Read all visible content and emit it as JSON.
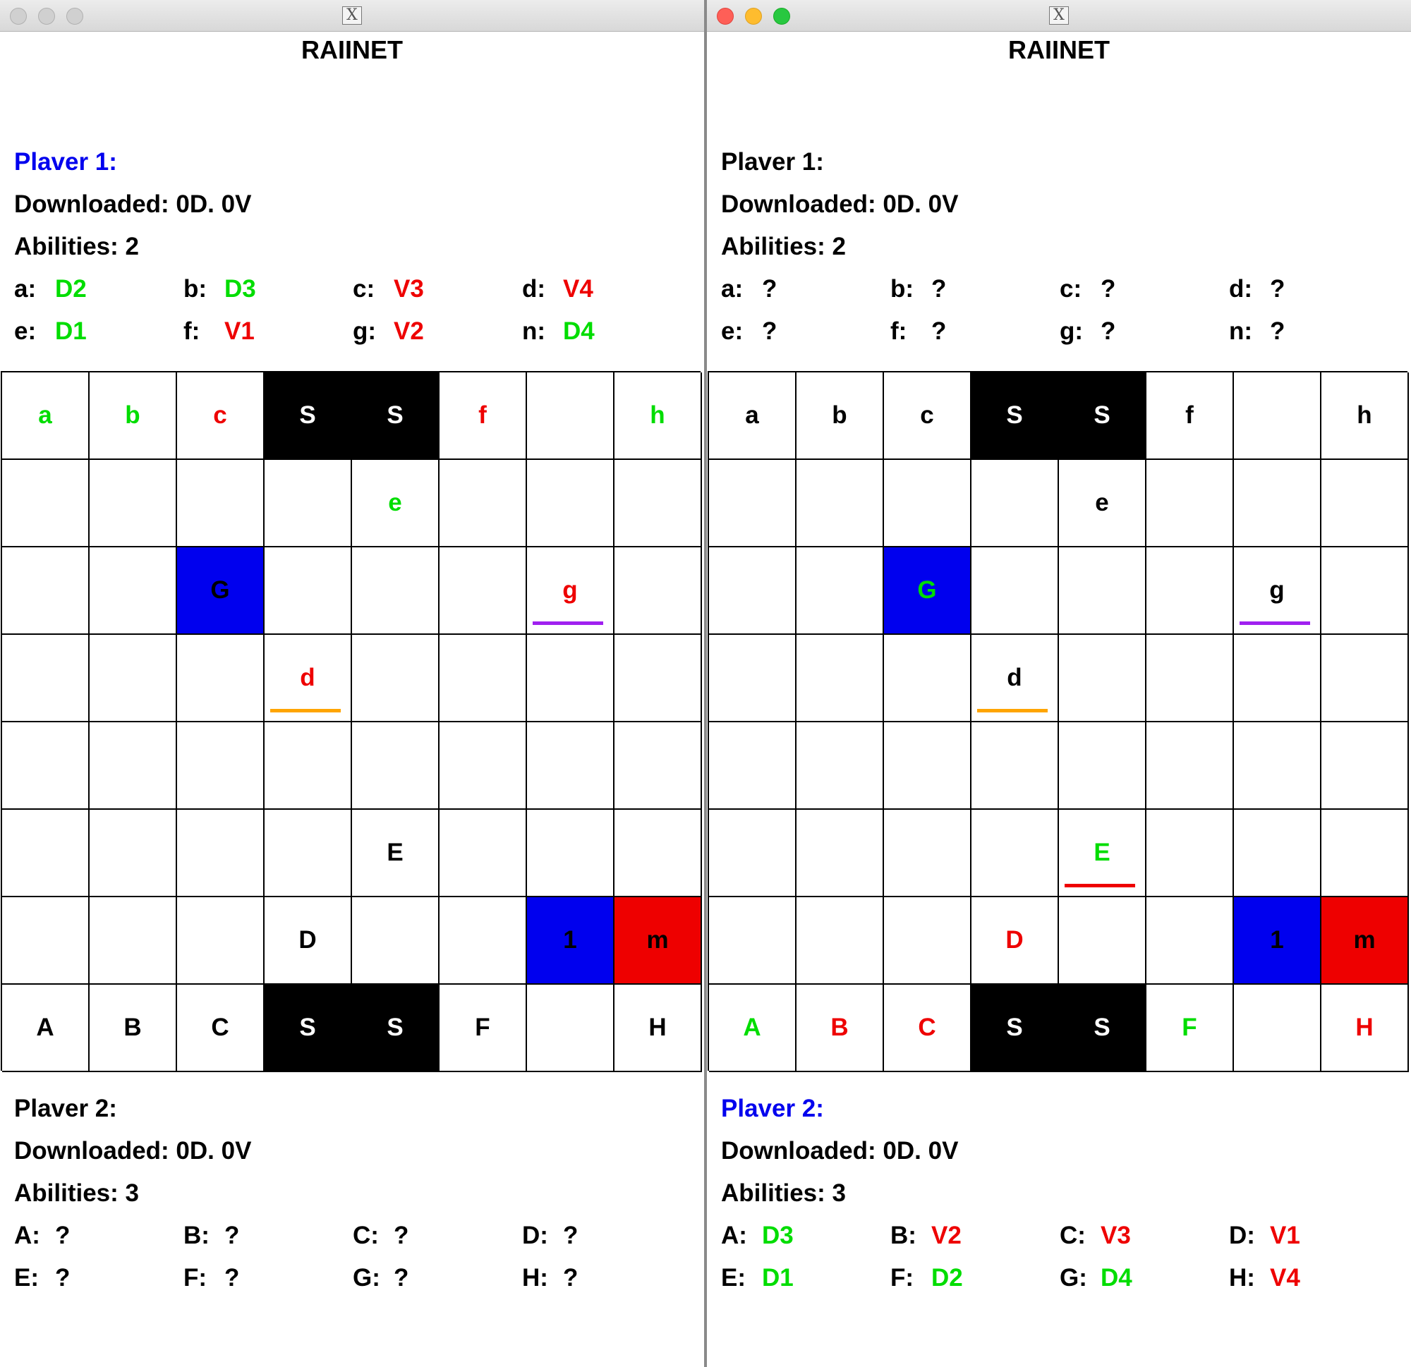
{
  "colors": {
    "green": "#00dd00",
    "red": "#ee0000",
    "blue": "#0000ee",
    "black": "#000000",
    "purple": "#a020f0",
    "orange": "#ffa500"
  },
  "windows": [
    {
      "title": "RAIINET",
      "titlebar_icon": "x11-icon",
      "top_player": {
        "name": "Plaver 1:",
        "downloaded": "Downloaded: 0D. 0V",
        "abilities": "Abilities: 2",
        "links": [
          {
            "key": "a:",
            "value": "D2",
            "color": "green"
          },
          {
            "key": "b:",
            "value": "D3",
            "color": "green"
          },
          {
            "key": "c:",
            "value": "V3",
            "color": "red"
          },
          {
            "key": "d:",
            "value": "V4",
            "color": "red"
          },
          {
            "key": "e:",
            "value": "D1",
            "color": "green"
          },
          {
            "key": "f:",
            "value": "V1",
            "color": "red"
          },
          {
            "key": "g:",
            "value": "V2",
            "color": "red"
          },
          {
            "key": "n:",
            "value": "D4",
            "color": "green"
          }
        ]
      },
      "bottom_player": {
        "name": "Plaver 2:",
        "downloaded": "Downloaded: 0D. 0V",
        "abilities": "Abilities: 3",
        "links": [
          {
            "key": "A:",
            "value": "?",
            "color": "black"
          },
          {
            "key": "B:",
            "value": "?",
            "color": "black"
          },
          {
            "key": "C:",
            "value": "?",
            "color": "black"
          },
          {
            "key": "D:",
            "value": "?",
            "color": "black"
          },
          {
            "key": "E:",
            "value": "?",
            "color": "black"
          },
          {
            "key": "F:",
            "value": "?",
            "color": "black"
          },
          {
            "key": "G:",
            "value": "?",
            "color": "black"
          },
          {
            "key": "H:",
            "value": "?",
            "color": "black"
          }
        ]
      },
      "board": [
        [
          {
            "t": "a",
            "c": "green"
          },
          {
            "t": "b",
            "c": "green"
          },
          {
            "t": "c",
            "c": "red"
          },
          {
            "t": "S",
            "bg": "server"
          },
          {
            "t": "S",
            "bg": "server"
          },
          {
            "t": "f",
            "c": "red"
          },
          {
            "t": ""
          },
          {
            "t": "h",
            "c": "green"
          }
        ],
        [
          {
            "t": ""
          },
          {
            "t": ""
          },
          {
            "t": ""
          },
          {
            "t": ""
          },
          {
            "t": "e",
            "c": "green"
          },
          {
            "t": ""
          },
          {
            "t": ""
          },
          {
            "t": ""
          }
        ],
        [
          {
            "t": ""
          },
          {
            "t": ""
          },
          {
            "t": "G",
            "c": "black",
            "bg": "fw-blue"
          },
          {
            "t": ""
          },
          {
            "t": ""
          },
          {
            "t": ""
          },
          {
            "t": "g",
            "c": "red",
            "u": "purple"
          },
          {
            "t": ""
          }
        ],
        [
          {
            "t": ""
          },
          {
            "t": ""
          },
          {
            "t": ""
          },
          {
            "t": "d",
            "c": "red",
            "u": "orange"
          },
          {
            "t": ""
          },
          {
            "t": ""
          },
          {
            "t": ""
          },
          {
            "t": ""
          }
        ],
        [
          {
            "t": ""
          },
          {
            "t": ""
          },
          {
            "t": ""
          },
          {
            "t": ""
          },
          {
            "t": ""
          },
          {
            "t": ""
          },
          {
            "t": ""
          },
          {
            "t": ""
          }
        ],
        [
          {
            "t": ""
          },
          {
            "t": ""
          },
          {
            "t": ""
          },
          {
            "t": ""
          },
          {
            "t": "E",
            "c": "black"
          },
          {
            "t": ""
          },
          {
            "t": ""
          },
          {
            "t": ""
          }
        ],
        [
          {
            "t": ""
          },
          {
            "t": ""
          },
          {
            "t": ""
          },
          {
            "t": "D",
            "c": "black"
          },
          {
            "t": ""
          },
          {
            "t": ""
          },
          {
            "t": "1",
            "c": "black",
            "bg": "fw-blue"
          },
          {
            "t": "m",
            "c": "black",
            "bg": "fw-red"
          }
        ],
        [
          {
            "t": "A",
            "c": "black"
          },
          {
            "t": "B",
            "c": "black"
          },
          {
            "t": "C",
            "c": "black"
          },
          {
            "t": "S",
            "bg": "server"
          },
          {
            "t": "S",
            "bg": "server"
          },
          {
            "t": "F",
            "c": "black"
          },
          {
            "t": ""
          },
          {
            "t": "H",
            "c": "black"
          }
        ]
      ]
    },
    {
      "title": "RAIINET",
      "titlebar_icon": "x11-icon",
      "top_player": {
        "name": "Plaver 1:",
        "downloaded": "Downloaded: 0D. 0V",
        "abilities": "Abilities: 2",
        "links": [
          {
            "key": "a:",
            "value": "?",
            "color": "black"
          },
          {
            "key": "b:",
            "value": "?",
            "color": "black"
          },
          {
            "key": "c:",
            "value": "?",
            "color": "black"
          },
          {
            "key": "d:",
            "value": "?",
            "color": "black"
          },
          {
            "key": "e:",
            "value": "?",
            "color": "black"
          },
          {
            "key": "f:",
            "value": "?",
            "color": "black"
          },
          {
            "key": "g:",
            "value": "?",
            "color": "black"
          },
          {
            "key": "n:",
            "value": "?",
            "color": "black"
          }
        ]
      },
      "bottom_player": {
        "name": "Plaver 2:",
        "downloaded": "Downloaded: 0D. 0V",
        "abilities": "Abilities: 3",
        "links": [
          {
            "key": "A:",
            "value": "D3",
            "color": "green"
          },
          {
            "key": "B:",
            "value": "V2",
            "color": "red"
          },
          {
            "key": "C:",
            "value": "V3",
            "color": "red"
          },
          {
            "key": "D:",
            "value": "V1",
            "color": "red"
          },
          {
            "key": "E:",
            "value": "D1",
            "color": "green"
          },
          {
            "key": "F:",
            "value": "D2",
            "color": "green"
          },
          {
            "key": "G:",
            "value": "D4",
            "color": "green"
          },
          {
            "key": "H:",
            "value": "V4",
            "color": "red"
          }
        ]
      },
      "board": [
        [
          {
            "t": "a",
            "c": "black"
          },
          {
            "t": "b",
            "c": "black"
          },
          {
            "t": "c",
            "c": "black"
          },
          {
            "t": "S",
            "bg": "server"
          },
          {
            "t": "S",
            "bg": "server"
          },
          {
            "t": "f",
            "c": "black"
          },
          {
            "t": ""
          },
          {
            "t": "h",
            "c": "black"
          }
        ],
        [
          {
            "t": ""
          },
          {
            "t": ""
          },
          {
            "t": ""
          },
          {
            "t": ""
          },
          {
            "t": "e",
            "c": "black"
          },
          {
            "t": ""
          },
          {
            "t": ""
          },
          {
            "t": ""
          }
        ],
        [
          {
            "t": ""
          },
          {
            "t": ""
          },
          {
            "t": "G",
            "c": "green",
            "bg": "fw-blue"
          },
          {
            "t": ""
          },
          {
            "t": ""
          },
          {
            "t": ""
          },
          {
            "t": "g",
            "c": "black",
            "u": "purple"
          },
          {
            "t": ""
          }
        ],
        [
          {
            "t": ""
          },
          {
            "t": ""
          },
          {
            "t": ""
          },
          {
            "t": "d",
            "c": "black",
            "u": "orange"
          },
          {
            "t": ""
          },
          {
            "t": ""
          },
          {
            "t": ""
          },
          {
            "t": ""
          }
        ],
        [
          {
            "t": ""
          },
          {
            "t": ""
          },
          {
            "t": ""
          },
          {
            "t": ""
          },
          {
            "t": ""
          },
          {
            "t": ""
          },
          {
            "t": ""
          },
          {
            "t": ""
          }
        ],
        [
          {
            "t": ""
          },
          {
            "t": ""
          },
          {
            "t": ""
          },
          {
            "t": ""
          },
          {
            "t": "E",
            "c": "green",
            "u": "red"
          },
          {
            "t": ""
          },
          {
            "t": ""
          },
          {
            "t": ""
          }
        ],
        [
          {
            "t": ""
          },
          {
            "t": ""
          },
          {
            "t": ""
          },
          {
            "t": "D",
            "c": "red"
          },
          {
            "t": ""
          },
          {
            "t": ""
          },
          {
            "t": "1",
            "c": "black",
            "bg": "fw-blue"
          },
          {
            "t": "m",
            "c": "black",
            "bg": "fw-red"
          }
        ],
        [
          {
            "t": "A",
            "c": "green"
          },
          {
            "t": "B",
            "c": "red"
          },
          {
            "t": "C",
            "c": "red"
          },
          {
            "t": "S",
            "bg": "server"
          },
          {
            "t": "S",
            "bg": "server"
          },
          {
            "t": "F",
            "c": "green"
          },
          {
            "t": ""
          },
          {
            "t": "H",
            "c": "red"
          }
        ]
      ]
    }
  ]
}
